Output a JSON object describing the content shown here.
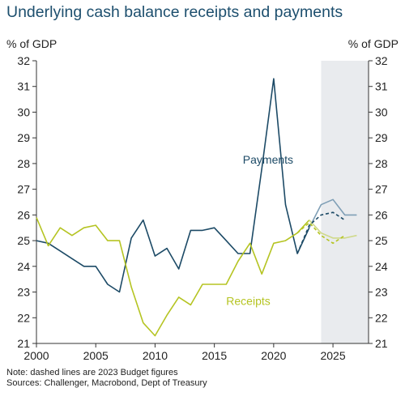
{
  "title": "Underlying cash balance receipts and payments",
  "chart_data": {
    "type": "line",
    "title": "Underlying cash balance receipts and payments",
    "ylabel_left": "% of GDP",
    "ylabel_right": "% of GDP",
    "xlim": [
      2000,
      2028
    ],
    "ylim": [
      21,
      32
    ],
    "x_ticks": [
      2000,
      2005,
      2010,
      2015,
      2020,
      2025
    ],
    "y_ticks": [
      21,
      22,
      23,
      24,
      25,
      26,
      27,
      28,
      29,
      30,
      31,
      32
    ],
    "shaded_region": {
      "from": 2024,
      "to": 2028,
      "color": "#e9ebee"
    },
    "series": [
      {
        "name": "Payments",
        "color": "#1c4a66",
        "style": "solid",
        "x": [
          2000,
          2001,
          2002,
          2003,
          2004,
          2005,
          2006,
          2007,
          2008,
          2009,
          2010,
          2011,
          2012,
          2013,
          2014,
          2015,
          2016,
          2017,
          2018,
          2019,
          2020,
          2021,
          2022,
          2023
        ],
        "y": [
          25.0,
          24.9,
          24.6,
          24.3,
          24.0,
          24.0,
          23.3,
          23.0,
          25.1,
          25.8,
          24.4,
          24.7,
          23.9,
          25.4,
          25.4,
          25.5,
          25.0,
          24.5,
          24.5,
          27.8,
          31.3,
          26.4,
          24.5,
          25.5
        ]
      },
      {
        "name": "Receipts",
        "color": "#b5c422",
        "style": "solid",
        "x": [
          2000,
          2001,
          2002,
          2003,
          2004,
          2005,
          2006,
          2007,
          2008,
          2009,
          2010,
          2011,
          2012,
          2013,
          2014,
          2015,
          2016,
          2017,
          2018,
          2019,
          2020,
          2021,
          2022,
          2023
        ],
        "y": [
          25.9,
          24.8,
          25.5,
          25.2,
          25.5,
          25.6,
          25.0,
          25.0,
          23.2,
          21.8,
          21.3,
          22.1,
          22.8,
          22.5,
          23.3,
          23.3,
          23.3,
          24.2,
          24.9,
          23.7,
          24.9,
          25.0,
          25.3,
          25.8
        ]
      },
      {
        "name": "",
        "color": "#7f9fb6",
        "style": "solid",
        "x": [
          2023,
          2024,
          2025,
          2026,
          2027
        ],
        "y": [
          25.5,
          26.4,
          26.6,
          26.0,
          26.0
        ]
      },
      {
        "name": "",
        "color": "#cfd98a",
        "style": "solid",
        "x": [
          2023,
          2024,
          2025,
          2026,
          2027
        ],
        "y": [
          25.8,
          25.3,
          25.1,
          25.1,
          25.2
        ]
      },
      {
        "name": "",
        "color": "#1c4a66",
        "style": "dashed",
        "x": [
          2022,
          2023,
          2024,
          2025,
          2026
        ],
        "y": [
          24.5,
          25.6,
          26.0,
          26.1,
          25.8
        ]
      },
      {
        "name": "",
        "color": "#b5c422",
        "style": "dashed",
        "x": [
          2022,
          2023,
          2024,
          2025,
          2026
        ],
        "y": [
          25.3,
          25.7,
          25.2,
          24.9,
          25.2
        ]
      }
    ],
    "annotations": [
      {
        "text": "Payments",
        "color": "#1c4a66",
        "x": 2017.4,
        "y": 28.0
      },
      {
        "text": "Receipts",
        "color": "#b5c422",
        "x": 2016.0,
        "y": 22.5
      }
    ]
  },
  "notes": [
    "Note: dashed lines are 2023 Budget figures",
    "Sources: Challenger, Macrobond, Dept of Treasury"
  ]
}
